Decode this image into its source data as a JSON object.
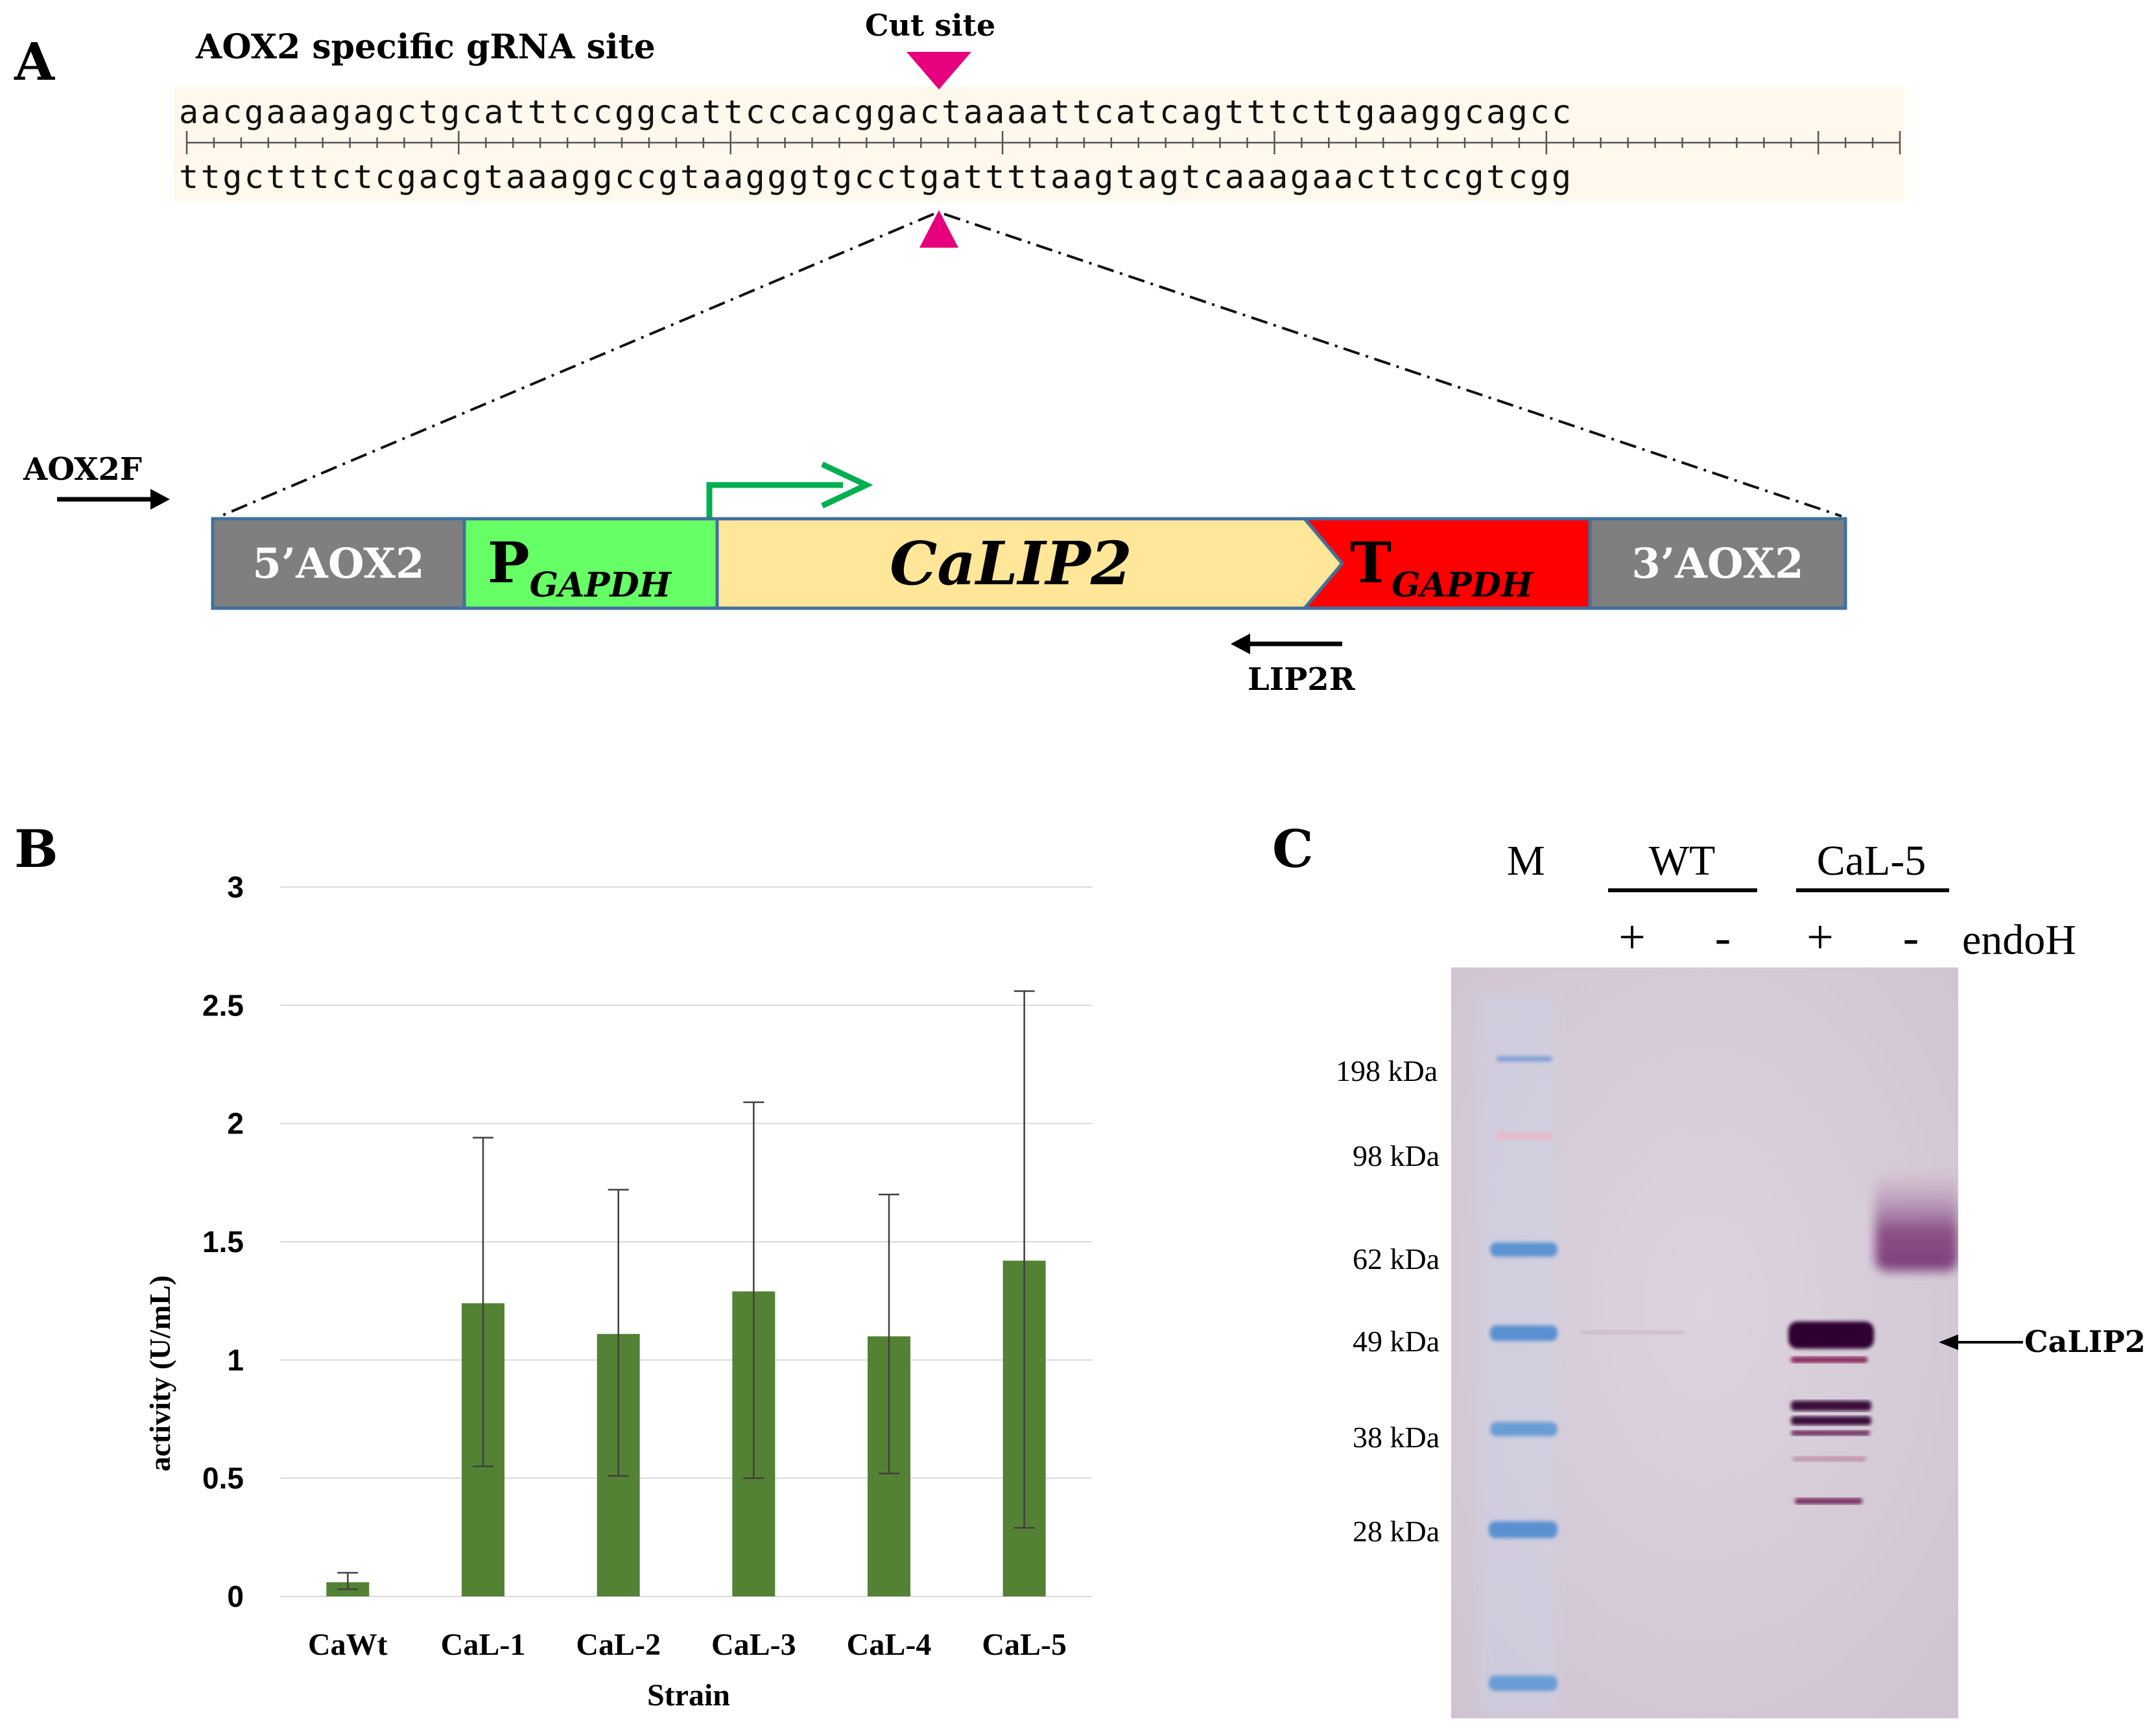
{
  "panel_a": {
    "letter": "A",
    "title": "AOX2 specific gRNA site",
    "cut_label": "Cut site",
    "seq_top": "aacgaaagagctgcatttccggcattcccacggactaaaattcatcagtttcttgaaggcagcc",
    "seq_bottom": "ttgctttctcgacgtaaaggccgtaagggtgcctgattttaagtagtcaaagaacttccgtcgg",
    "primer_f": "AOX2F",
    "primer_r": "LIP2R",
    "construct": {
      "aox5": "5’AOX2",
      "p_main": "P",
      "p_sub": "GAPDH",
      "gene": "CaLIP2",
      "t_main": "T",
      "t_sub": "GAPDH",
      "aox3": "3’AOX2"
    },
    "colors": {
      "aox": "#7f7f7f",
      "promoter": "#66ff66",
      "gene": "#ffe699",
      "terminator": "#ff0000",
      "arrow_green": "#00b050",
      "cut_marker": "#e6007e",
      "block_border": "#41719c"
    }
  },
  "panel_b": {
    "letter": "B",
    "chart_data": {
      "type": "bar",
      "categories": [
        "CaWt",
        "CaL-1",
        "CaL-2",
        "CaL-3",
        "CaL-4",
        "CaL-5"
      ],
      "values": [
        0.06,
        1.24,
        1.11,
        1.29,
        1.1,
        1.42
      ],
      "error_upper": [
        0.1,
        1.94,
        1.72,
        2.09,
        1.7,
        2.56
      ],
      "error_lower": [
        0.03,
        0.55,
        0.51,
        0.5,
        0.52,
        0.29
      ],
      "xlabel": "Strain",
      "ylabel": "activity (U/mL)",
      "ylim": [
        0,
        3
      ],
      "yticks": [
        "0",
        "0.5",
        "1",
        "1.5",
        "2",
        "2.5",
        "3"
      ],
      "grid": true,
      "bar_color": "#548235"
    }
  },
  "panel_c": {
    "letter": "C",
    "lane_m": "M",
    "group_wt": "WT",
    "group_cal": "CaL-5",
    "signs": [
      "+",
      "-",
      "+",
      "-"
    ],
    "treatment": "endoH",
    "markers": [
      "198 kDa",
      "98 kDa",
      "62 kDa",
      "49 kDa",
      "38 kDa",
      "28 kDa"
    ],
    "band_label": "CaLIP2"
  }
}
